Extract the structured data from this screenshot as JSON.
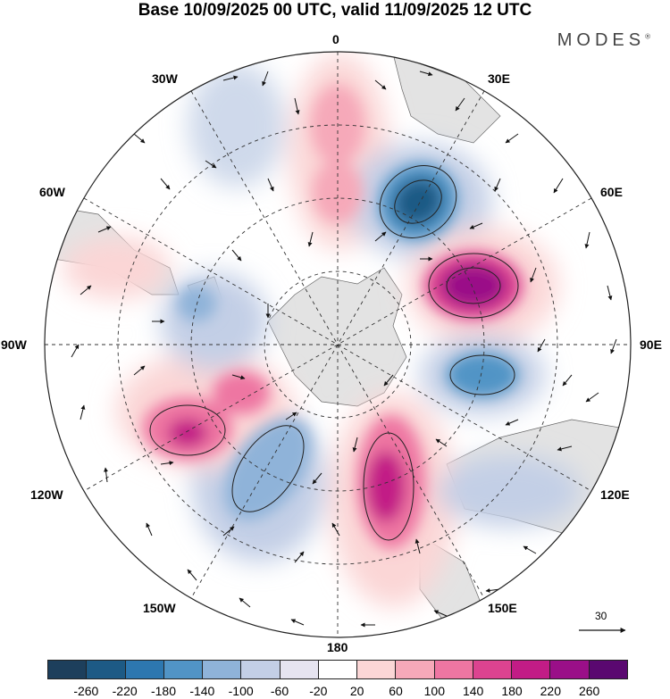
{
  "title": "Base 10/09/2025 00 UTC, valid 11/09/2025 12 UTC",
  "brand": "MODES",
  "brand_mark": "®",
  "longitude_labels": {
    "top": "0",
    "top_right": "30E",
    "top_left": "30W",
    "upper_right": "60E",
    "upper_left": "60W",
    "right": "90E",
    "left": "90W",
    "lower_right": "120E",
    "lower_left": "120W",
    "bottom_right": "150E",
    "bottom_left": "150W",
    "bottom": "180"
  },
  "reference_vector": "30",
  "colorbar": {
    "colors": [
      "#1d3f5c",
      "#1d5a85",
      "#2d77b0",
      "#5194c6",
      "#8fb3d9",
      "#c3cfe6",
      "#e6e4f0",
      "#ffffff",
      "#fbd6d6",
      "#f6a9b9",
      "#ee76a2",
      "#dc4390",
      "#c21c86",
      "#9a0f88",
      "#5a0870"
    ],
    "ticks": [
      "-260",
      "-220",
      "-180",
      "-140",
      "-100",
      "-60",
      "-20",
      "20",
      "60",
      "100",
      "140",
      "180",
      "220",
      "260"
    ]
  }
}
